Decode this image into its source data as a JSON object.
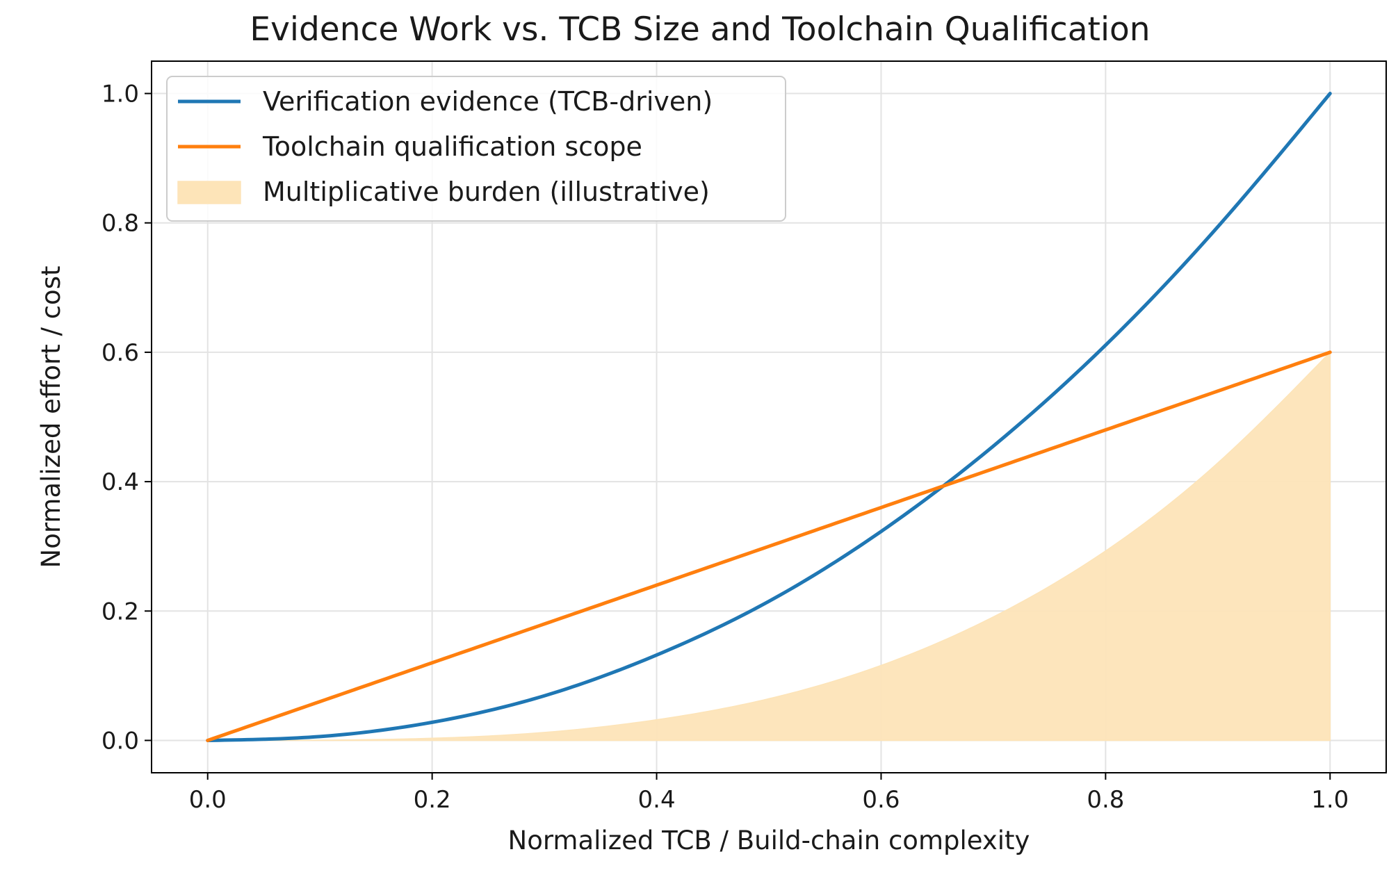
{
  "chart_data": {
    "type": "line",
    "title": "Evidence Work vs. TCB Size and Toolchain Qualification",
    "xlabel": "Normalized TCB / Build-chain complexity",
    "ylabel": "Normalized effort / cost",
    "xlim": [
      -0.05,
      1.05
    ],
    "ylim": [
      -0.05,
      1.05
    ],
    "xticks": [
      0.0,
      0.2,
      0.4,
      0.6,
      0.8,
      1.0
    ],
    "xtick_labels": [
      "0.0",
      "0.2",
      "0.4",
      "0.6",
      "0.8",
      "1.0"
    ],
    "yticks": [
      0.0,
      0.2,
      0.4,
      0.6,
      0.8,
      1.0
    ],
    "ytick_labels": [
      "0.0",
      "0.2",
      "0.4",
      "0.6",
      "0.8",
      "1.0"
    ],
    "grid": true,
    "legend_position": "top-left",
    "x": [
      0.0,
      0.1,
      0.2,
      0.3,
      0.4,
      0.5,
      0.6,
      0.7,
      0.8,
      0.9,
      1.0
    ],
    "series": [
      {
        "name": "Verification evidence (TCB-driven)",
        "kind": "line",
        "color": "#1f77b4",
        "values": [
          0.0,
          0.006,
          0.028,
          0.069,
          0.132,
          0.215,
          0.323,
          0.455,
          0.611,
          0.794,
          1.0
        ]
      },
      {
        "name": "Toolchain qualification scope",
        "kind": "line",
        "color": "#ff7f0e",
        "values": [
          0.0,
          0.06,
          0.12,
          0.18,
          0.24,
          0.3,
          0.36,
          0.42,
          0.48,
          0.54,
          0.6
        ]
      },
      {
        "name": "Multiplicative burden (illustrative)",
        "kind": "area",
        "color": "#fde4b8",
        "values": [
          0.0,
          0.0004,
          0.0034,
          0.0124,
          0.032,
          0.0645,
          0.116,
          0.191,
          0.293,
          0.429,
          0.6
        ]
      }
    ]
  }
}
